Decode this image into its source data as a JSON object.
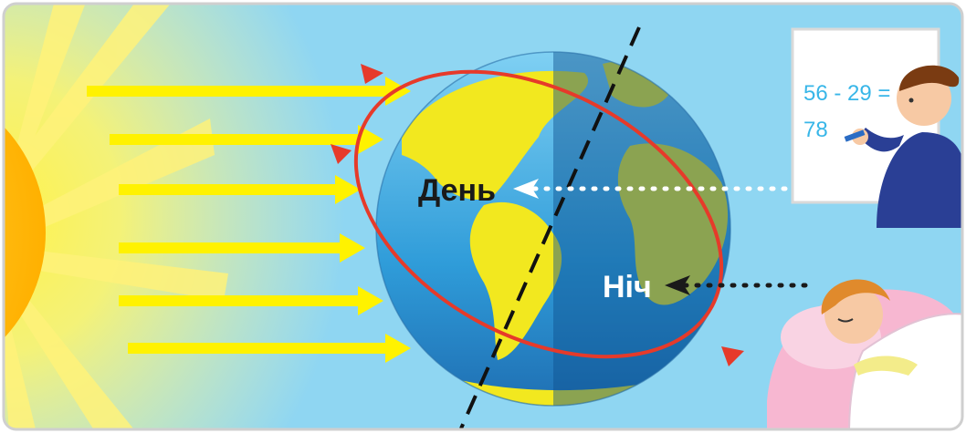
{
  "labels": {
    "day": "День",
    "night": "Ніч"
  },
  "whiteboard": {
    "line1": "56 - 29 =",
    "line2": "78"
  },
  "colors": {
    "sky": "#8fd6f2",
    "sun": "#ffc21a",
    "ray": "#fff200",
    "orbit": "#e63a2a",
    "day_label": "#1a1a1a",
    "night_label": "#ffffff",
    "day_pointer": "#ffffff",
    "night_pointer": "#1a1a1a",
    "ocean_day": "#3aa3dd",
    "ocean_night": "#1f6fb3",
    "land": "#f2e81f"
  }
}
